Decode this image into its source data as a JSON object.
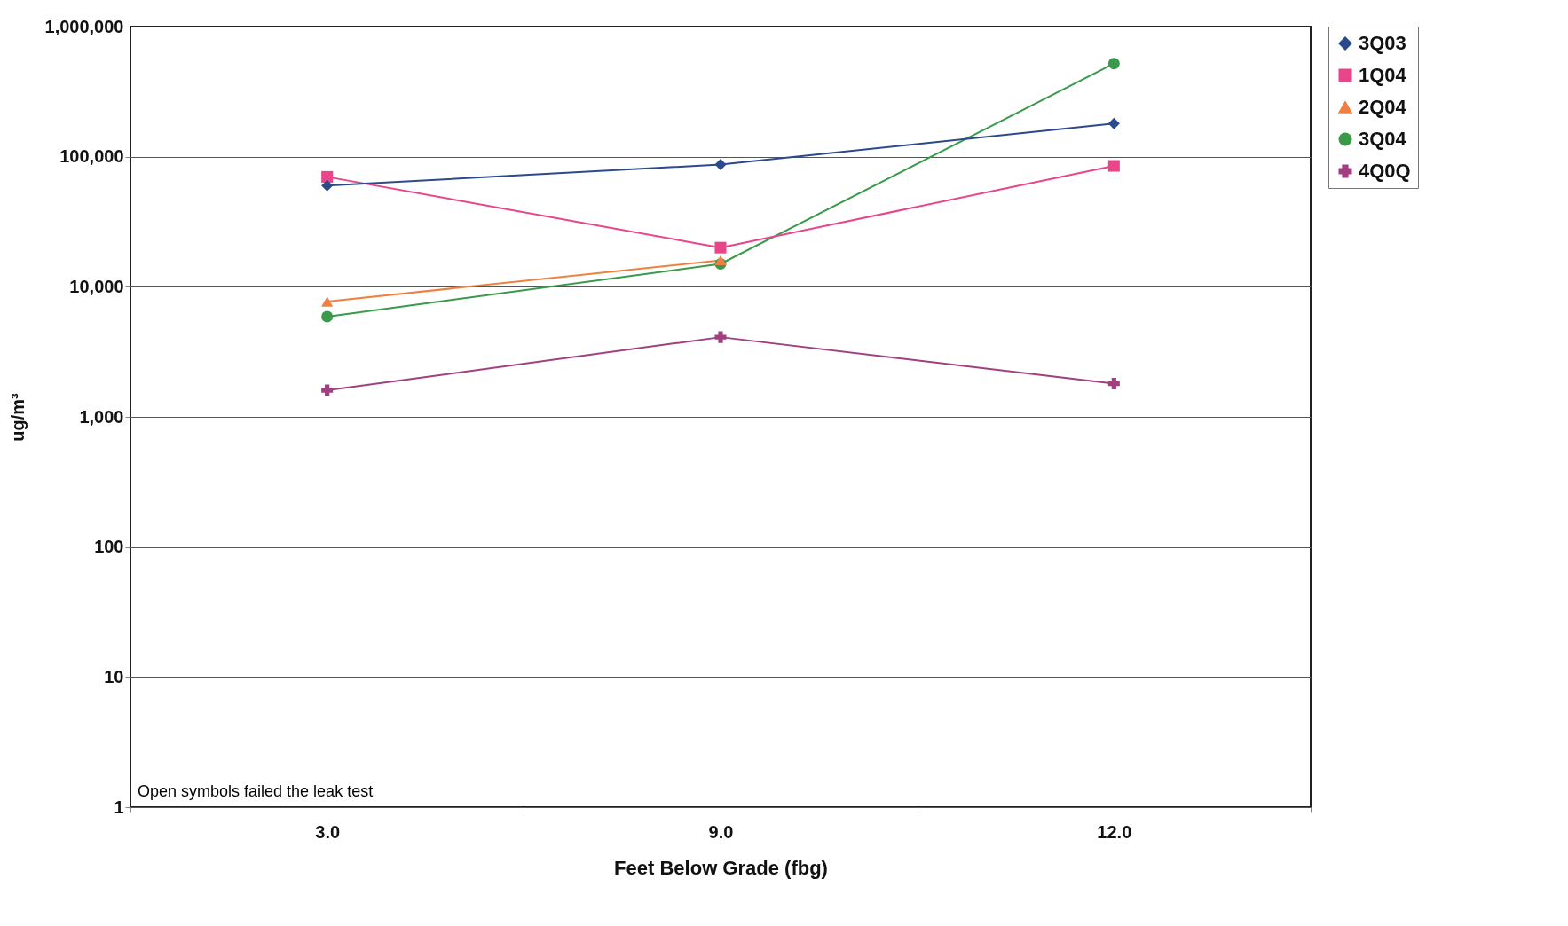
{
  "chart_data": {
    "type": "line",
    "xlabel": "Feet Below Grade (fbg)",
    "ylabel": "ug/m³",
    "categories": [
      "3.0",
      "9.0",
      "12.0"
    ],
    "series": [
      {
        "name": "3Q03",
        "color": "#2b4a8c",
        "marker": "diamond",
        "values": [
          60000,
          87000,
          180000
        ]
      },
      {
        "name": "1Q04",
        "color": "#e8458b",
        "marker": "square",
        "values": [
          70000,
          20000,
          85000
        ]
      },
      {
        "name": "2Q04",
        "color": "#f08040",
        "marker": "triangle",
        "values": [
          7700,
          16000,
          null
        ]
      },
      {
        "name": "3Q04",
        "color": "#3a9a4a",
        "marker": "circle",
        "values": [
          5900,
          15000,
          520000
        ]
      },
      {
        "name": "4Q0Q",
        "color": "#a04080",
        "marker": "cross",
        "values": [
          1600,
          4100,
          1800
        ]
      }
    ],
    "log": true,
    "ylim": [
      1,
      1000000
    ],
    "yticks": [
      1,
      10,
      100,
      {
        "value": 1000,
        "label": "1,000"
      },
      {
        "value": 10000,
        "label": "10,000"
      },
      {
        "value": 100000,
        "label": "100,000"
      },
      {
        "value": 1000000,
        "label": "1,000,000"
      }
    ],
    "line_style": "solid",
    "grid": "y",
    "legend": "right",
    "annotations": [
      "Open symbols failed the leak test"
    ]
  }
}
